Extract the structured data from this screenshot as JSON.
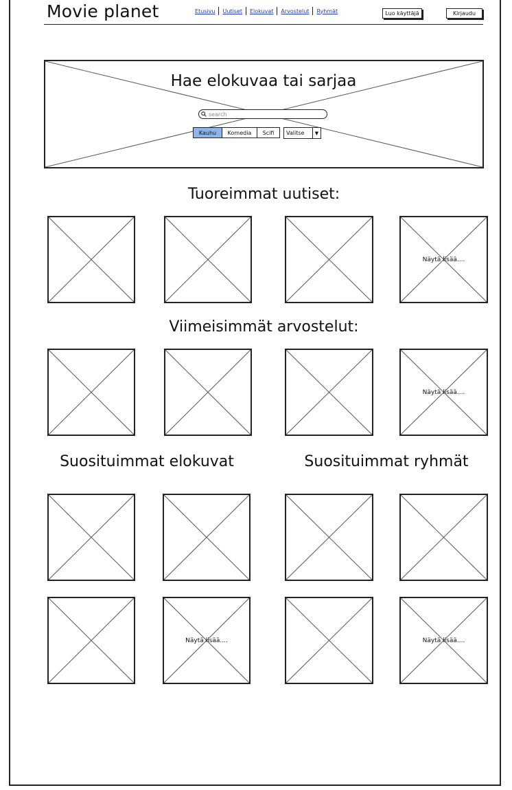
{
  "header": {
    "site_title": "Movie planet",
    "nav": [
      "Etusivu",
      "Uutiset",
      "Elokuvat",
      "Arvostelut",
      "Ryhmät"
    ],
    "signup_label": "Luo käyttäjä",
    "login_label": "Kirjaudu"
  },
  "hero": {
    "title": "Hae elokuvaa tai sarjaa",
    "search_placeholder": "search",
    "genres": [
      "Kauhu",
      "Komedia",
      "Scifi"
    ],
    "active_genre": "Kauhu",
    "dropdown_value": "Valitse"
  },
  "sections": {
    "news_title": "Tuoreimmat uutiset:",
    "reviews_title": "Viimeisimmät arvostelut:",
    "movies_title": "Suosituimmat elokuvat",
    "groups_title": "Suosituimmat ryhmät"
  },
  "show_more_label": "Näytä lisää...."
}
